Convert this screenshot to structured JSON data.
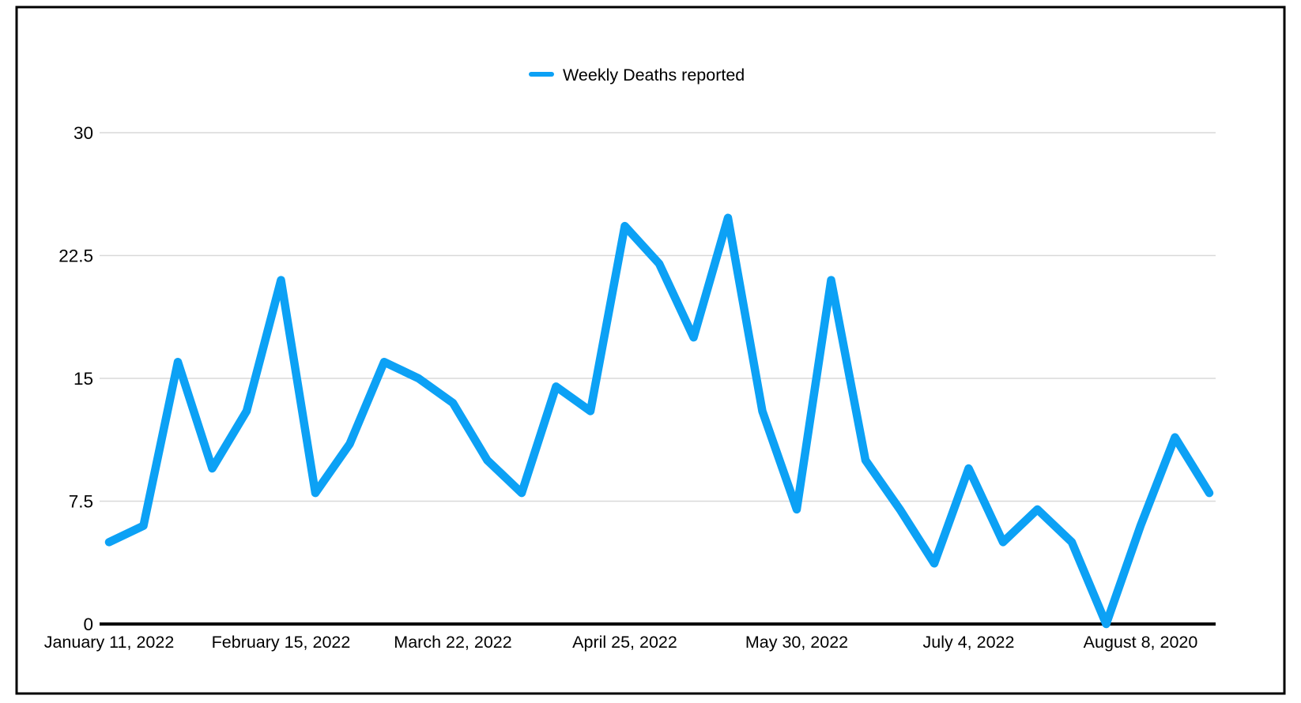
{
  "legend": {
    "label": "Weekly Deaths reported",
    "marker": "dash-icon",
    "color": "#0ca1f5"
  },
  "colors": {
    "series": "#0ca1f5",
    "gridline": "#d9d9d9",
    "axis": "#000000",
    "frame": "#000000",
    "background": "#ffffff",
    "text": "#000000"
  },
  "chart_data": {
    "type": "line",
    "title": "",
    "xlabel": "",
    "ylabel": "",
    "ylim": [
      0,
      30
    ],
    "grid": true,
    "legend_position": "top-center",
    "y_ticks": [
      {
        "value": 0,
        "label": "0"
      },
      {
        "value": 7.5,
        "label": "7.5"
      },
      {
        "value": 15,
        "label": "15"
      },
      {
        "value": 22.5,
        "label": "22.5"
      },
      {
        "value": 30,
        "label": "30"
      }
    ],
    "x_tick_labels": [
      {
        "index": 0,
        "label": "January 11, 2022"
      },
      {
        "index": 5,
        "label": "February 15, 2022"
      },
      {
        "index": 10,
        "label": "March 22, 2022"
      },
      {
        "index": 15,
        "label": "April 25, 2022"
      },
      {
        "index": 20,
        "label": "May 30, 2022"
      },
      {
        "index": 25,
        "label": "July 4, 2022"
      },
      {
        "index": 30,
        "label": "August 8, 2020"
      }
    ],
    "series": [
      {
        "name": "Weekly Deaths reported",
        "values": [
          5,
          6,
          16,
          9.5,
          13,
          21,
          8,
          11,
          16,
          15,
          13.5,
          10,
          8,
          14.5,
          13,
          24.3,
          22,
          17.5,
          24.8,
          13,
          7,
          21,
          10,
          7,
          3.7,
          9.5,
          5,
          7,
          5,
          0,
          6,
          11.4,
          8
        ]
      }
    ]
  }
}
